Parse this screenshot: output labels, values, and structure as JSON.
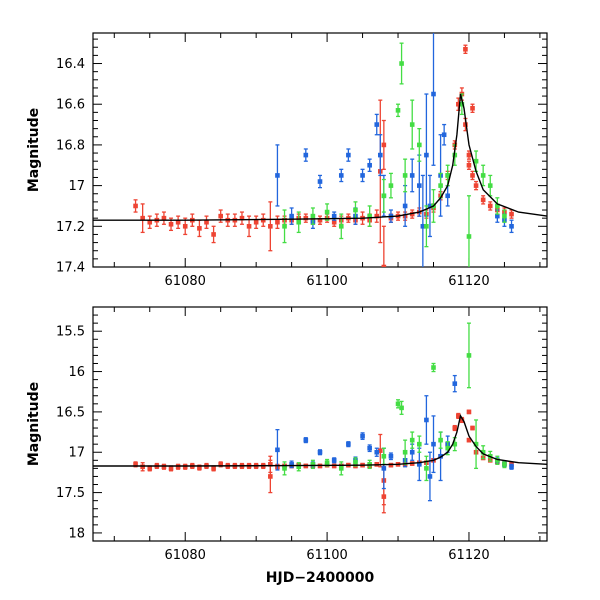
{
  "colors": {
    "red": "#ee4433",
    "blue": "#2266dd",
    "green": "#44dd44",
    "model": "#000000"
  },
  "chart_data": [
    {
      "type": "scatter",
      "title": "",
      "xlabel": "",
      "ylabel": "Magnitude",
      "xlim": [
        61067,
        61131
      ],
      "ylim": [
        17.4,
        16.25
      ],
      "y_inverted": true,
      "xticks": [
        61080,
        61100,
        61120
      ],
      "xtick_labels": [
        "61080",
        "61100",
        "61120"
      ],
      "yticks": [
        16.4,
        16.6,
        16.8,
        17.0,
        17.2,
        17.4
      ],
      "ytick_labels": [
        "16.4",
        "16.6",
        "16.8",
        "17",
        "17.2",
        "17.4"
      ],
      "model_curve": {
        "x": [
          61067,
          61080,
          61095,
          61105,
          61110,
          61113,
          61115,
          61116,
          61117,
          61117.7,
          61118.3,
          61118.8,
          61119.3,
          61120,
          61121,
          61122,
          61124,
          61127,
          61131
        ],
        "y": [
          17.17,
          17.17,
          17.165,
          17.16,
          17.15,
          17.13,
          17.1,
          17.06,
          17.0,
          16.9,
          16.75,
          16.55,
          16.62,
          16.8,
          16.93,
          17.02,
          17.09,
          17.13,
          17.15
        ]
      },
      "series": [
        {
          "name": "red",
          "x": [
            61073,
            61074,
            61075,
            61076,
            61077,
            61078,
            61079,
            61080,
            61081,
            61082,
            61083,
            61084,
            61085,
            61086,
            61087,
            61088,
            61089,
            61090,
            61091,
            61092,
            61093,
            61094,
            61095,
            61096,
            61097,
            61098,
            61099,
            61100,
            61101,
            61102,
            61103,
            61104,
            61105,
            61106,
            61107,
            61108,
            61109,
            61110,
            61111,
            61112,
            61113,
            61114,
            61115,
            61116,
            61117,
            61118,
            61118.5,
            61119,
            61119.5,
            61120,
            61120.5,
            61121,
            61122,
            61123,
            61124,
            61125,
            61126,
            61107.5,
            61108,
            61119.5,
            61120.5,
            61120
          ],
          "y": [
            17.1,
            17.16,
            17.18,
            17.17,
            17.16,
            17.19,
            17.18,
            17.2,
            17.17,
            17.21,
            17.18,
            17.24,
            17.15,
            17.17,
            17.17,
            17.16,
            17.2,
            17.18,
            17.17,
            17.2,
            17.18,
            17.17,
            17.17,
            17.16,
            17.16,
            17.17,
            17.17,
            17.16,
            17.18,
            17.17,
            17.16,
            17.17,
            17.16,
            17.17,
            17.15,
            17.4,
            17.16,
            17.15,
            17.15,
            17.14,
            17.13,
            17.14,
            17.11,
            17.05,
            16.95,
            16.8,
            16.6,
            16.55,
            16.7,
            16.9,
            16.95,
            17.0,
            17.07,
            17.1,
            17.12,
            17.13,
            17.14,
            16.93,
            16.8,
            16.33,
            16.62,
            16.85
          ],
          "err": [
            0.03,
            0.07,
            0.03,
            0.03,
            0.03,
            0.03,
            0.03,
            0.04,
            0.03,
            0.04,
            0.03,
            0.04,
            0.03,
            0.03,
            0.03,
            0.03,
            0.05,
            0.03,
            0.03,
            0.12,
            0.03,
            0.02,
            0.02,
            0.02,
            0.02,
            0.02,
            0.02,
            0.02,
            0.02,
            0.02,
            0.02,
            0.02,
            0.03,
            0.03,
            0.03,
            0.2,
            0.02,
            0.02,
            0.02,
            0.02,
            0.02,
            0.02,
            0.02,
            0.02,
            0.02,
            0.02,
            0.03,
            0.03,
            0.03,
            0.02,
            0.02,
            0.02,
            0.02,
            0.02,
            0.02,
            0.02,
            0.02,
            0.35,
            0.12,
            0.02,
            0.02,
            0.02
          ]
        },
        {
          "name": "blue",
          "x": [
            61093,
            61095,
            61097,
            61098,
            61099,
            61101,
            61102,
            61103,
            61104,
            61105,
            61106,
            61107,
            61108,
            61109,
            61111,
            61112,
            61113,
            61114,
            61115,
            61116,
            61116.5,
            61117,
            61124,
            61125,
            61126,
            61107.5,
            61113.5,
            61114.5
          ],
          "y": [
            16.95,
            17.15,
            16.85,
            17.18,
            16.98,
            17.15,
            16.95,
            16.85,
            17.15,
            16.95,
            16.9,
            16.7,
            17.05,
            17.15,
            17.1,
            16.95,
            17.0,
            16.85,
            16.55,
            16.95,
            16.75,
            17.05,
            17.15,
            17.17,
            17.2,
            16.85,
            17.2,
            17.1
          ],
          "err": [
            0.15,
            0.04,
            0.03,
            0.03,
            0.03,
            0.02,
            0.03,
            0.03,
            0.04,
            0.03,
            0.03,
            0.05,
            0.1,
            0.03,
            0.1,
            0.08,
            0.15,
            0.3,
            0.35,
            0.2,
            0.05,
            0.05,
            0.03,
            0.03,
            0.03,
            0.1,
            0.25,
            0.15
          ]
        },
        {
          "name": "green",
          "x": [
            61094,
            61096,
            61098,
            61100,
            61102,
            61104,
            61106,
            61108,
            61109,
            61110,
            61110.5,
            61111,
            61112,
            61113,
            61114,
            61115,
            61116,
            61117,
            61118,
            61119,
            61120,
            61121,
            61122,
            61123,
            61124,
            61125
          ],
          "y": [
            17.2,
            17.18,
            17.15,
            17.13,
            17.2,
            17.12,
            17.15,
            17.05,
            17.0,
            16.63,
            16.4,
            16.95,
            16.7,
            16.8,
            17.2,
            17.1,
            17.0,
            16.95,
            16.85,
            16.6,
            17.25,
            16.88,
            16.95,
            17.0,
            17.1,
            17.15
          ],
          "err": [
            0.08,
            0.05,
            0.04,
            0.04,
            0.06,
            0.04,
            0.05,
            0.08,
            0.06,
            0.03,
            0.1,
            0.08,
            0.12,
            0.08,
            0.1,
            0.08,
            0.06,
            0.05,
            0.05,
            0.05,
            0.2,
            0.05,
            0.05,
            0.05,
            0.04,
            0.03
          ]
        }
      ]
    },
    {
      "type": "scatter",
      "title": "",
      "xlabel": "HJD−2400000",
      "ylabel": "Magnitude",
      "xlim": [
        61067,
        61131
      ],
      "ylim": [
        18.1,
        15.2
      ],
      "y_inverted": true,
      "xticks": [
        61080,
        61100,
        61120
      ],
      "xtick_labels": [
        "61080",
        "61100",
        "61120"
      ],
      "yticks": [
        15.5,
        16.0,
        16.5,
        17.0,
        17.5,
        18.0
      ],
      "ytick_labels": [
        "15.5",
        "16",
        "16.5",
        "17",
        "17.5",
        "18"
      ],
      "model_curve": {
        "x": [
          61067,
          61080,
          61095,
          61105,
          61110,
          61113,
          61115,
          61116,
          61117,
          61117.7,
          61118.3,
          61118.8,
          61119.3,
          61120,
          61121,
          61122,
          61124,
          61127,
          61131
        ],
        "y": [
          17.17,
          17.17,
          17.165,
          17.16,
          17.15,
          17.13,
          17.1,
          17.06,
          17.0,
          16.9,
          16.75,
          16.55,
          16.62,
          16.8,
          16.93,
          17.02,
          17.09,
          17.13,
          17.15
        ]
      },
      "series": [
        {
          "name": "red",
          "x": [
            61073,
            61074,
            61075,
            61076,
            61077,
            61078,
            61079,
            61080,
            61081,
            61082,
            61083,
            61084,
            61085,
            61086,
            61087,
            61088,
            61089,
            61090,
            61091,
            61092,
            61093,
            61094,
            61095,
            61096,
            61097,
            61098,
            61099,
            61100,
            61101,
            61102,
            61103,
            61104,
            61105,
            61106,
            61107,
            61108,
            61109,
            61110,
            61111,
            61112,
            61113,
            61114,
            61115,
            61116,
            61117,
            61118,
            61118.5,
            61119,
            61120,
            61121,
            61122,
            61123,
            61124,
            61125,
            61126,
            61108,
            61107.5,
            61092,
            61120.5,
            61120
          ],
          "y": [
            17.15,
            17.18,
            17.2,
            17.17,
            17.18,
            17.2,
            17.18,
            17.18,
            17.17,
            17.19,
            17.17,
            17.2,
            17.15,
            17.17,
            17.17,
            17.17,
            17.17,
            17.17,
            17.17,
            17.3,
            17.18,
            17.17,
            17.17,
            17.16,
            17.17,
            17.17,
            17.17,
            17.16,
            17.17,
            17.17,
            17.16,
            17.17,
            17.16,
            17.17,
            17.15,
            17.35,
            17.16,
            17.15,
            17.15,
            17.14,
            17.13,
            17.13,
            17.1,
            17.05,
            16.9,
            16.7,
            16.55,
            16.6,
            16.85,
            17.0,
            17.07,
            17.1,
            17.12,
            17.14,
            17.15,
            17.55,
            16.98,
            17.15,
            16.7,
            16.5
          ],
          "err": [
            0.03,
            0.05,
            0.03,
            0.03,
            0.03,
            0.03,
            0.03,
            0.03,
            0.03,
            0.03,
            0.03,
            0.03,
            0.03,
            0.03,
            0.03,
            0.03,
            0.03,
            0.03,
            0.03,
            0.2,
            0.03,
            0.02,
            0.02,
            0.02,
            0.02,
            0.02,
            0.02,
            0.02,
            0.02,
            0.02,
            0.02,
            0.02,
            0.02,
            0.02,
            0.02,
            0.3,
            0.02,
            0.02,
            0.02,
            0.02,
            0.02,
            0.02,
            0.02,
            0.02,
            0.02,
            0.03,
            0.03,
            0.03,
            0.02,
            0.02,
            0.02,
            0.02,
            0.02,
            0.02,
            0.02,
            0.2,
            0.2,
            0.1,
            0.02,
            0.02
          ]
        },
        {
          "name": "blue",
          "x": [
            61093,
            61095,
            61097,
            61098,
            61099,
            61101,
            61103,
            61104,
            61105,
            61106,
            61107,
            61108,
            61109,
            61111,
            61112,
            61113,
            61114,
            61115,
            61116,
            61117,
            61118,
            61124,
            61125,
            61126,
            61114.5
          ],
          "y": [
            16.97,
            17.15,
            16.85,
            17.15,
            17.0,
            17.1,
            16.9,
            17.1,
            16.8,
            16.95,
            17.0,
            17.2,
            17.05,
            17.1,
            17.0,
            17.15,
            16.6,
            16.9,
            17.05,
            16.9,
            16.15,
            17.1,
            17.15,
            17.18,
            17.3
          ],
          "err": [
            0.25,
            0.04,
            0.03,
            0.03,
            0.03,
            0.03,
            0.03,
            0.04,
            0.04,
            0.04,
            0.05,
            0.25,
            0.04,
            0.08,
            0.1,
            0.2,
            0.3,
            0.35,
            0.3,
            0.1,
            0.1,
            0.03,
            0.03,
            0.03,
            0.3
          ]
        },
        {
          "name": "green",
          "x": [
            61094,
            61096,
            61098,
            61100,
            61102,
            61104,
            61106,
            61108,
            61110,
            61110.5,
            61111,
            61112,
            61113,
            61114,
            61115,
            61116,
            61117,
            61118,
            61120,
            61121,
            61122,
            61123,
            61124,
            61125
          ],
          "y": [
            17.2,
            17.18,
            17.15,
            17.13,
            17.2,
            17.12,
            17.15,
            17.05,
            16.4,
            16.45,
            17.0,
            16.85,
            16.9,
            17.2,
            15.95,
            16.85,
            16.95,
            16.9,
            15.8,
            16.9,
            17.0,
            17.05,
            17.1,
            17.15
          ],
          "err": [
            0.08,
            0.05,
            0.05,
            0.04,
            0.08,
            0.05,
            0.05,
            0.1,
            0.05,
            0.08,
            0.15,
            0.1,
            0.1,
            0.15,
            0.05,
            0.1,
            0.08,
            0.08,
            0.4,
            0.3,
            0.08,
            0.06,
            0.05,
            0.04
          ]
        }
      ]
    }
  ]
}
